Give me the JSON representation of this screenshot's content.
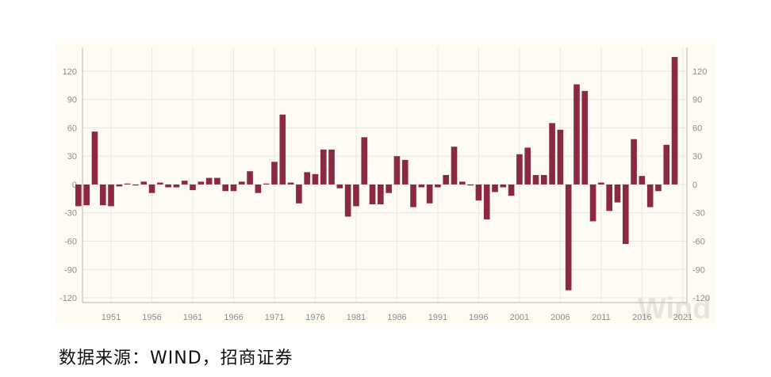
{
  "chart_data": {
    "type": "bar",
    "title": "",
    "xlabel": "",
    "ylabel": "",
    "ylim": [
      -125,
      145
    ],
    "yticks": [
      120,
      90,
      60,
      30,
      0,
      -30,
      -60,
      -90,
      -120
    ],
    "xticks": [
      1951,
      1956,
      1961,
      1966,
      1971,
      1976,
      1981,
      1986,
      1991,
      1996,
      2001,
      2006,
      2011,
      2016,
      2021
    ],
    "dual_y_axis": true,
    "grid": true,
    "bar_color": "#8b2942",
    "watermark": "Wind",
    "x": [
      1947,
      1948,
      1949,
      1950,
      1951,
      1952,
      1953,
      1954,
      1955,
      1956,
      1957,
      1958,
      1959,
      1960,
      1961,
      1962,
      1963,
      1964,
      1965,
      1966,
      1967,
      1968,
      1969,
      1970,
      1971,
      1972,
      1973,
      1974,
      1975,
      1976,
      1977,
      1978,
      1979,
      1980,
      1981,
      1982,
      1983,
      1984,
      1985,
      1986,
      1987,
      1988,
      1989,
      1990,
      1991,
      1992,
      1993,
      1994,
      1995,
      1996,
      1997,
      1998,
      1999,
      2000,
      2001,
      2002,
      2003,
      2004,
      2005,
      2006,
      2007,
      2008,
      2009,
      2010,
      2011,
      2012,
      2013,
      2014,
      2015,
      2016,
      2017,
      2018,
      2019,
      2020,
      2021
    ],
    "values": [
      -23,
      -22,
      56,
      -22,
      -23,
      -2,
      1,
      -1,
      3,
      -9,
      2,
      -3,
      -3,
      4,
      -6,
      3,
      7,
      7,
      -7,
      -7,
      3,
      14,
      -9,
      1,
      24,
      74,
      2,
      -20,
      13,
      11,
      37,
      37,
      -4,
      -34,
      -23,
      50,
      -21,
      -21,
      -9,
      30,
      26,
      -24,
      -3,
      -20,
      -3,
      10,
      40,
      3,
      -1,
      -17,
      -37,
      -8,
      -3,
      -12,
      32,
      39,
      10,
      10,
      65,
      58,
      -112,
      106,
      99,
      -39,
      2,
      -28,
      -19,
      -63,
      48,
      9,
      -24,
      -7,
      42,
      135,
      0
    ]
  },
  "footer": {
    "source": "数据来源：WIND，招商证券"
  }
}
